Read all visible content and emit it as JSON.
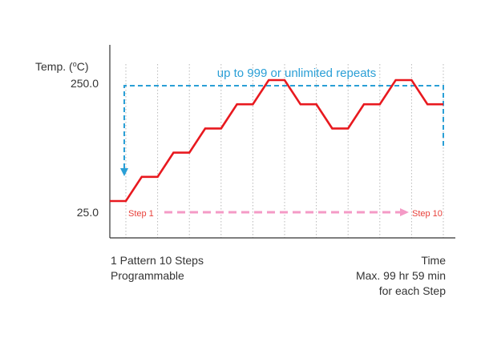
{
  "y_axis": {
    "label_prefix": "Temp. (",
    "label_sup": "o",
    "label_suffix": "C)",
    "max_label": "250.0",
    "min_label": "25.0"
  },
  "x_axis": {
    "label": "Time"
  },
  "repeat_label": "up to 999 or unlimited repeats",
  "step_start_label": "Step 1",
  "step_end_label": "Step 10",
  "pattern_label_line1": "1 Pattern 10 Steps",
  "pattern_label_line2": "Programmable",
  "time_label_line1": "Max. 99 hr 59 min",
  "time_label_line2": "for each Step",
  "colors": {
    "profile": "#e8191f",
    "repeat": "#2a9fd6",
    "step": "#f49ac6",
    "step_text": "#e8403a",
    "axis": "#333333",
    "grid": "#b8b8b8",
    "text": "#333333"
  },
  "chart_data": {
    "type": "line",
    "title": "",
    "xlabel": "Time",
    "ylabel": "Temp. (oC)",
    "yticks": [
      "25.0",
      "250.0"
    ],
    "steps": 10,
    "series": [
      {
        "values": [
          1,
          2,
          3,
          4,
          5,
          4,
          3,
          4,
          5,
          4,
          3
        ]
      }
    ],
    "grid": true
  }
}
